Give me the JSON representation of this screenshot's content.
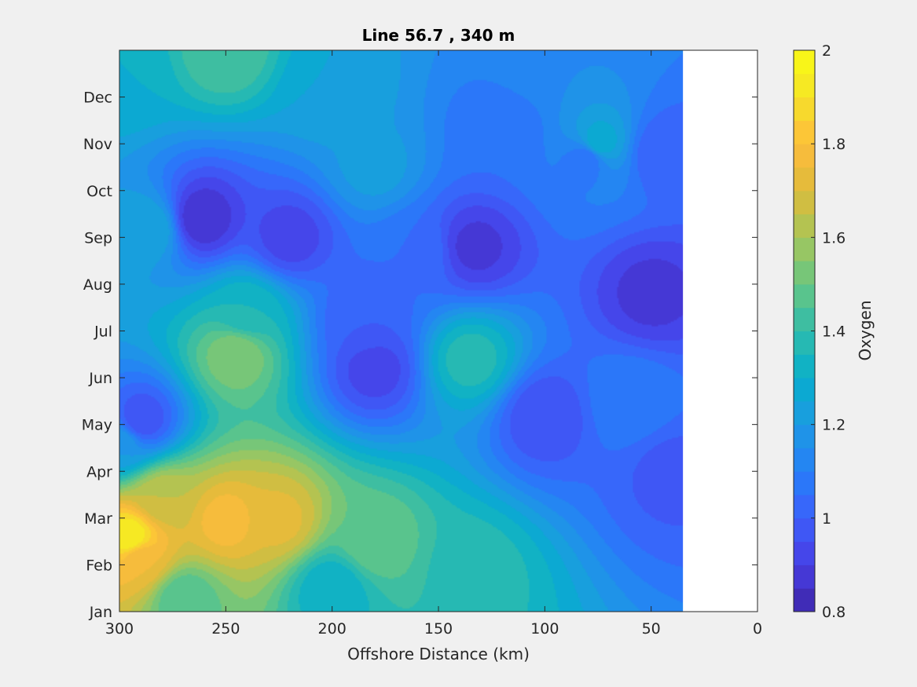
{
  "chart_data": {
    "type": "heatmap",
    "subtype": "filled-contour",
    "title": "Line 56.7 , 340 m",
    "xlabel": "Offshore Distance (km)",
    "ylabel": "",
    "xlim": [
      0,
      300
    ],
    "x_reversed": true,
    "x_ticks": [
      300,
      250,
      200,
      150,
      100,
      50,
      0
    ],
    "y_categories": [
      "Jan",
      "Feb",
      "Mar",
      "Apr",
      "May",
      "Jun",
      "Jul",
      "Aug",
      "Sep",
      "Oct",
      "Nov",
      "Dec"
    ],
    "data_coverage_x": [
      35,
      300
    ],
    "colorbar": {
      "label": "Oxygen",
      "clim": [
        0.8,
        2.0
      ],
      "ticks": [
        0.8,
        1,
        1.2,
        1.4,
        1.6,
        1.8,
        2
      ],
      "tick_labels": [
        "0.8",
        "1",
        "1.2",
        "1.4",
        "1.6",
        "1.8",
        "2"
      ],
      "levels": 24,
      "colormap": "parula",
      "location": "right"
    },
    "grid": false,
    "features": [
      {
        "x": 295,
        "month": 1.6,
        "value": 1.95
      },
      {
        "x": 290,
        "month": 1.1,
        "value": 1.75
      },
      {
        "x": 280,
        "month": 2.4,
        "value": 1.65
      },
      {
        "x": 250,
        "month": 1.95,
        "value": 1.78
      },
      {
        "x": 225,
        "month": 1.95,
        "value": 1.72
      },
      {
        "x": 180,
        "month": 1.5,
        "value": 1.5
      },
      {
        "x": 135,
        "month": 0.9,
        "value": 1.38
      },
      {
        "x": 270,
        "month": 0.3,
        "value": 1.45
      },
      {
        "x": 200,
        "month": 0.5,
        "value": 1.3
      },
      {
        "x": 290,
        "month": 4.1,
        "value": 0.95
      },
      {
        "x": 300,
        "month": 3.6,
        "value": 1.2
      },
      {
        "x": 245,
        "month": 5.5,
        "value": 1.55
      },
      {
        "x": 240,
        "month": 6.4,
        "value": 1.35
      },
      {
        "x": 180,
        "month": 5.2,
        "value": 0.92
      },
      {
        "x": 185,
        "month": 6.2,
        "value": 1.0
      },
      {
        "x": 135,
        "month": 5.4,
        "value": 1.38
      },
      {
        "x": 100,
        "month": 4.2,
        "value": 0.95
      },
      {
        "x": 50,
        "month": 6.8,
        "value": 0.88
      },
      {
        "x": 60,
        "month": 4.5,
        "value": 1.1
      },
      {
        "x": 40,
        "month": 3.0,
        "value": 0.98
      },
      {
        "x": 262,
        "month": 8.4,
        "value": 0.85
      },
      {
        "x": 220,
        "month": 8.0,
        "value": 0.92
      },
      {
        "x": 133,
        "month": 7.8,
        "value": 0.88
      },
      {
        "x": 160,
        "month": 7.7,
        "value": 1.05
      },
      {
        "x": 300,
        "month": 11.5,
        "value": 1.3
      },
      {
        "x": 285,
        "month": 8.2,
        "value": 1.25
      },
      {
        "x": 250,
        "month": 12.0,
        "value": 1.45
      },
      {
        "x": 200,
        "month": 11.2,
        "value": 1.25
      },
      {
        "x": 180,
        "month": 9.5,
        "value": 1.22
      },
      {
        "x": 80,
        "month": 9.7,
        "value": 1.05
      },
      {
        "x": 45,
        "month": 9.8,
        "value": 1.0
      },
      {
        "x": 75,
        "month": 10.0,
        "value": 1.3
      },
      {
        "x": 120,
        "month": 10.2,
        "value": 1.05
      },
      {
        "x": 100,
        "month": 11.9,
        "value": 1.15
      }
    ]
  }
}
